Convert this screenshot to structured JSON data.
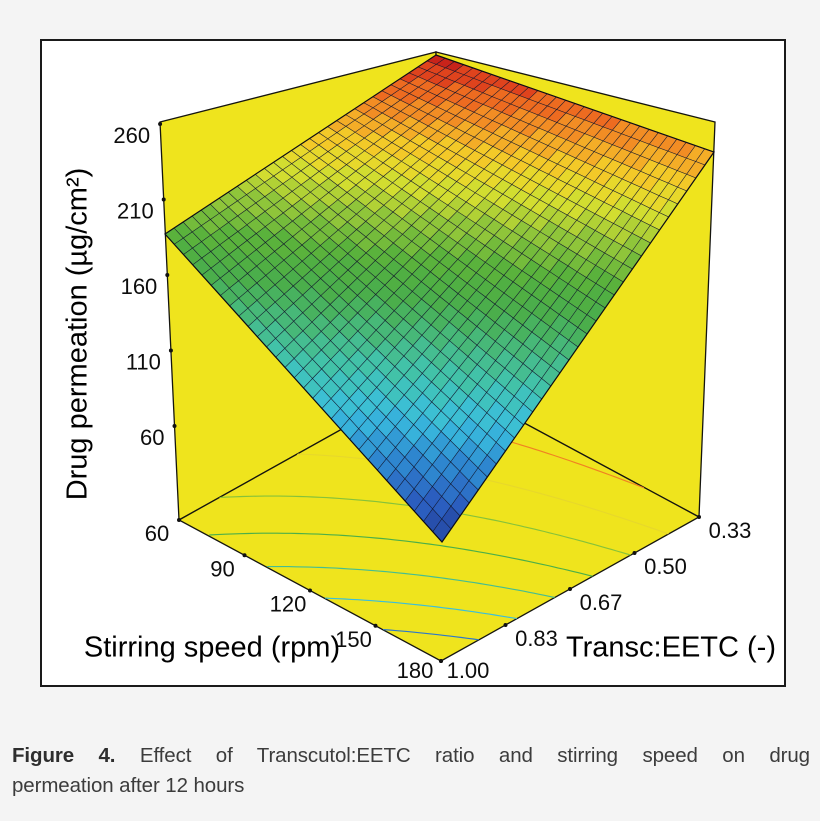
{
  "figure": {
    "caption_prefix": "Figure 4.",
    "caption_line1_rest": "Effect of Transcutol:EETC ratio and stirring speed on drug",
    "caption_line2": "permeation after 12 hours"
  },
  "chart_data": {
    "type": "surface",
    "title": "",
    "xlabel": "Stirring speed (rpm)",
    "ylabel": "Transc:EETC (-)",
    "zlabel": "Drug permeation (µg/cm²)",
    "x_tick_labels": [
      "60",
      "90",
      "120",
      "150",
      "180"
    ],
    "y_tick_labels_front_to_right": [
      "1.00",
      "0.83",
      "0.67",
      "0.50",
      "0.33"
    ],
    "z_tick_labels_top_to_bottom": [
      "260",
      "210",
      "160",
      "110",
      "60"
    ],
    "z_axis_tick_range": [
      60,
      260
    ],
    "speeds_rpm": [
      60,
      90,
      120,
      150,
      180
    ],
    "ratios": [
      0.33,
      0.5,
      0.67,
      0.83,
      1.0
    ],
    "surface_values_by_ratio": [
      {
        "ratio": 0.33,
        "values_by_speed": [
          270,
          264,
          258,
          251,
          245
        ]
      },
      {
        "ratio": 0.5,
        "values_by_speed": [
          249,
          237,
          226,
          214,
          202
        ]
      },
      {
        "ratio": 0.67,
        "values_by_speed": [
          229,
          211,
          194,
          177,
          160
        ]
      },
      {
        "ratio": 0.83,
        "values_by_speed": [
          208,
          185,
          163,
          140,
          118
        ]
      },
      {
        "ratio": 1.0,
        "values_by_speed": [
          187,
          159,
          131,
          103,
          75
        ]
      }
    ],
    "z_max_corner": {
      "speed": 60,
      "ratio": 0.33,
      "value": 270
    },
    "z_min_corner": {
      "speed": 180,
      "ratio": 1.0,
      "value": 75
    },
    "contour_levels_on_floor": [
      100,
      125,
      150,
      175,
      200,
      225,
      250
    ],
    "grid_density": 30,
    "legend": "none",
    "colors": {
      "wall": "#efe41d",
      "background": "#f4f4f4",
      "panel": "#ffffff",
      "frame": "#1a1a1a",
      "mesh_line": "#10142e",
      "colormap": [
        [
          0.0,
          "#24409a"
        ],
        [
          0.08,
          "#2b5fc0"
        ],
        [
          0.17,
          "#2f8ed2"
        ],
        [
          0.25,
          "#3abede"
        ],
        [
          0.33,
          "#41c4b2"
        ],
        [
          0.41,
          "#47ba81"
        ],
        [
          0.49,
          "#49ae4d"
        ],
        [
          0.57,
          "#55b03c"
        ],
        [
          0.65,
          "#8cc43a"
        ],
        [
          0.73,
          "#d2dd30"
        ],
        [
          0.79,
          "#f2d629"
        ],
        [
          0.86,
          "#f4a326"
        ],
        [
          0.92,
          "#ee6e20"
        ],
        [
          0.97,
          "#dc3a1c"
        ],
        [
          1.0,
          "#c8231a"
        ]
      ]
    }
  }
}
